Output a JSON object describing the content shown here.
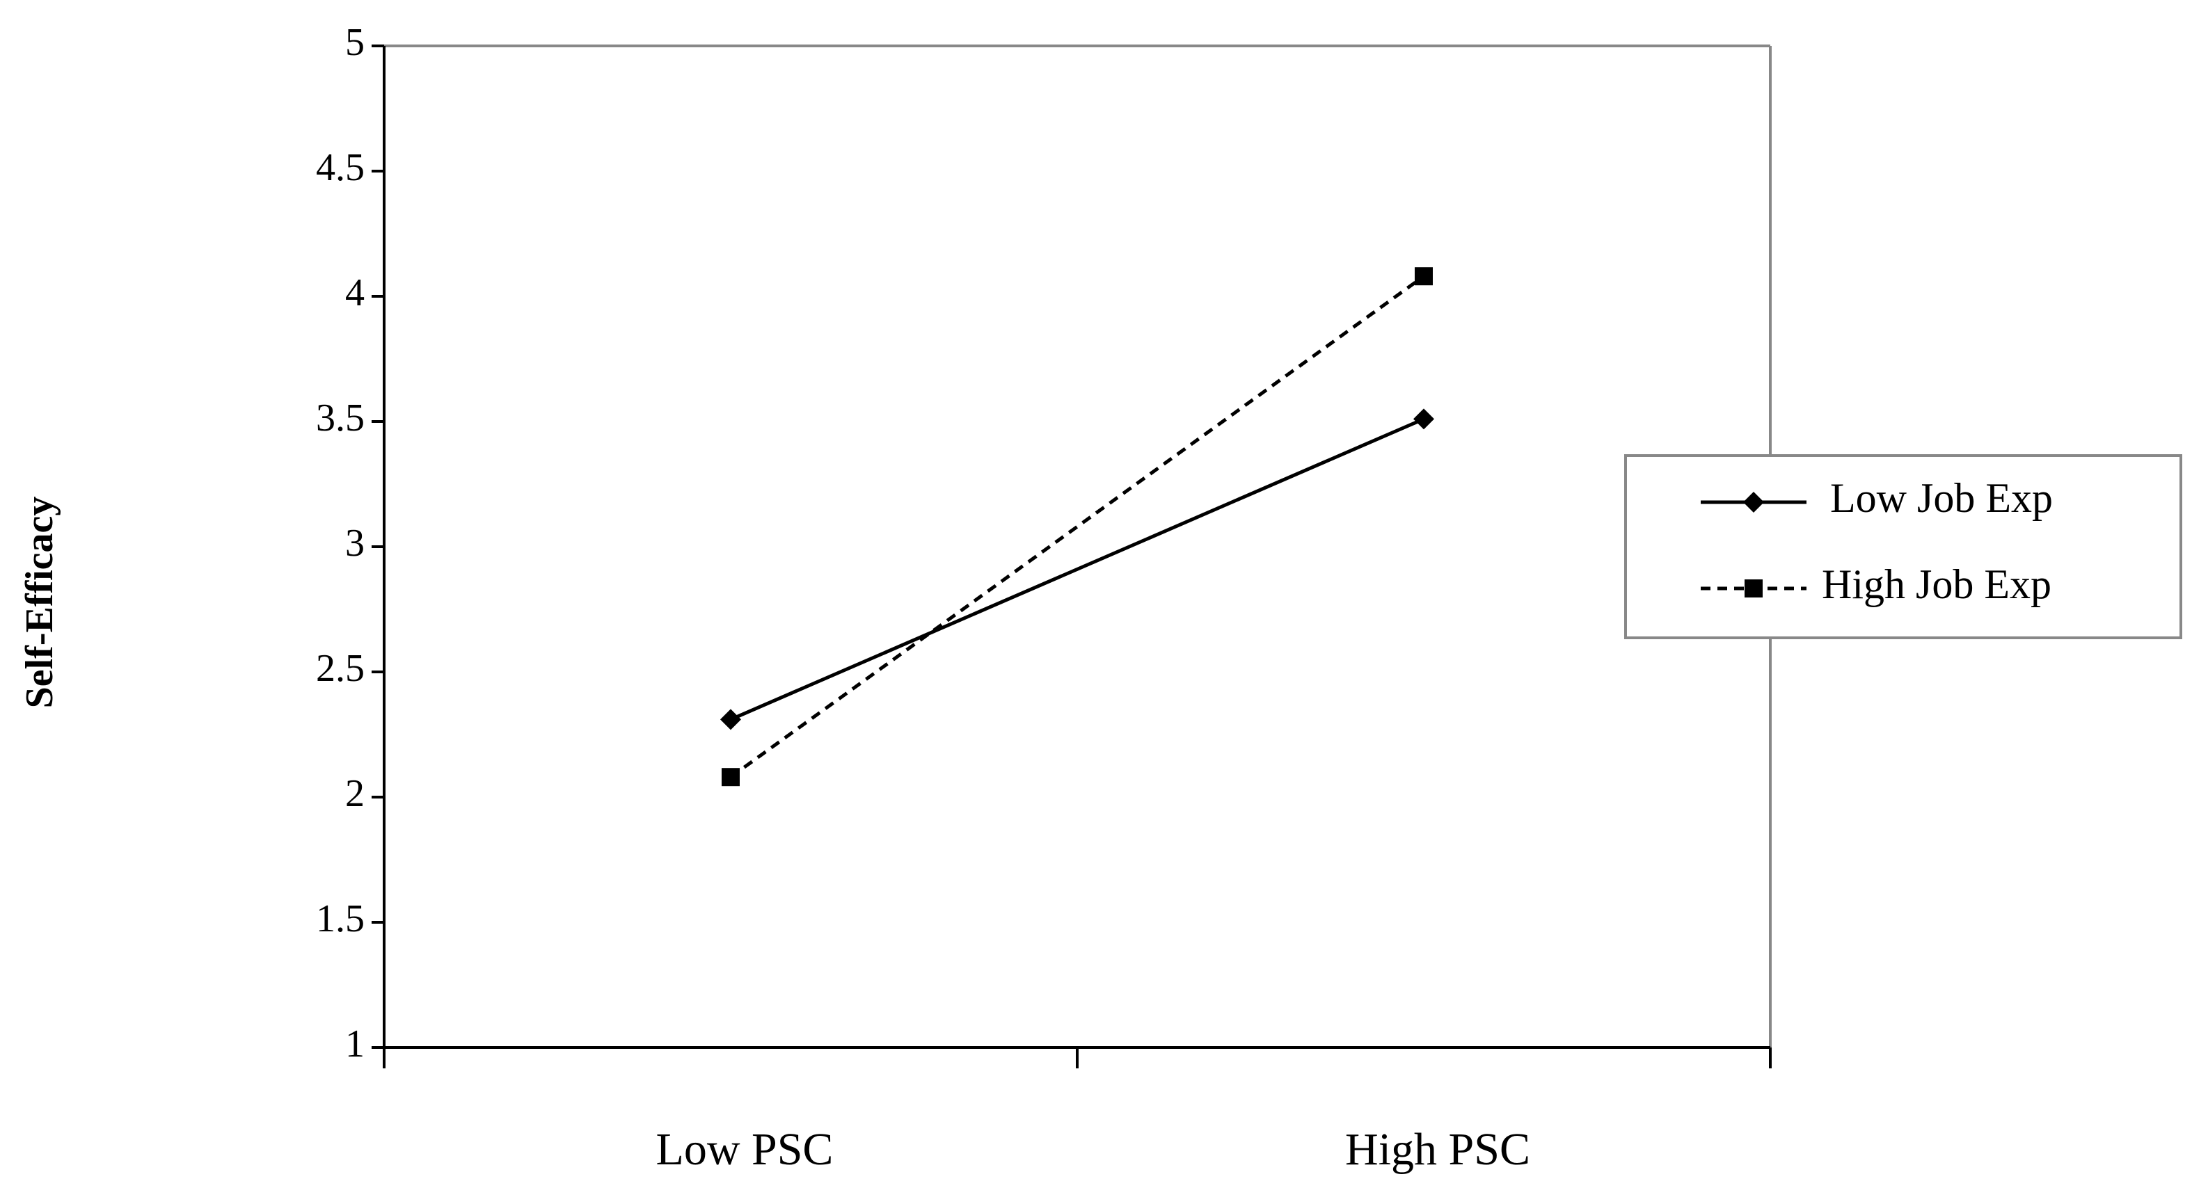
{
  "chart_data": {
    "type": "line",
    "title": "",
    "xlabel": "",
    "ylabel": "Self-Efficacy",
    "categories": [
      "Low PSC",
      "High PSC"
    ],
    "ylim": [
      1,
      5
    ],
    "yticks": [
      "1",
      "1.5",
      "2",
      "2.5",
      "3",
      "3.5",
      "4",
      "4.5",
      "5"
    ],
    "grid": false,
    "legend_position": "right",
    "series": [
      {
        "name": "Low Job Exp",
        "values": [
          2.31,
          3.51
        ],
        "line": "solid",
        "marker": "diamond",
        "color": "#000000"
      },
      {
        "name": "High Job Exp",
        "values": [
          2.08,
          4.08
        ],
        "line": "dashed",
        "marker": "square",
        "color": "#000000"
      }
    ]
  }
}
